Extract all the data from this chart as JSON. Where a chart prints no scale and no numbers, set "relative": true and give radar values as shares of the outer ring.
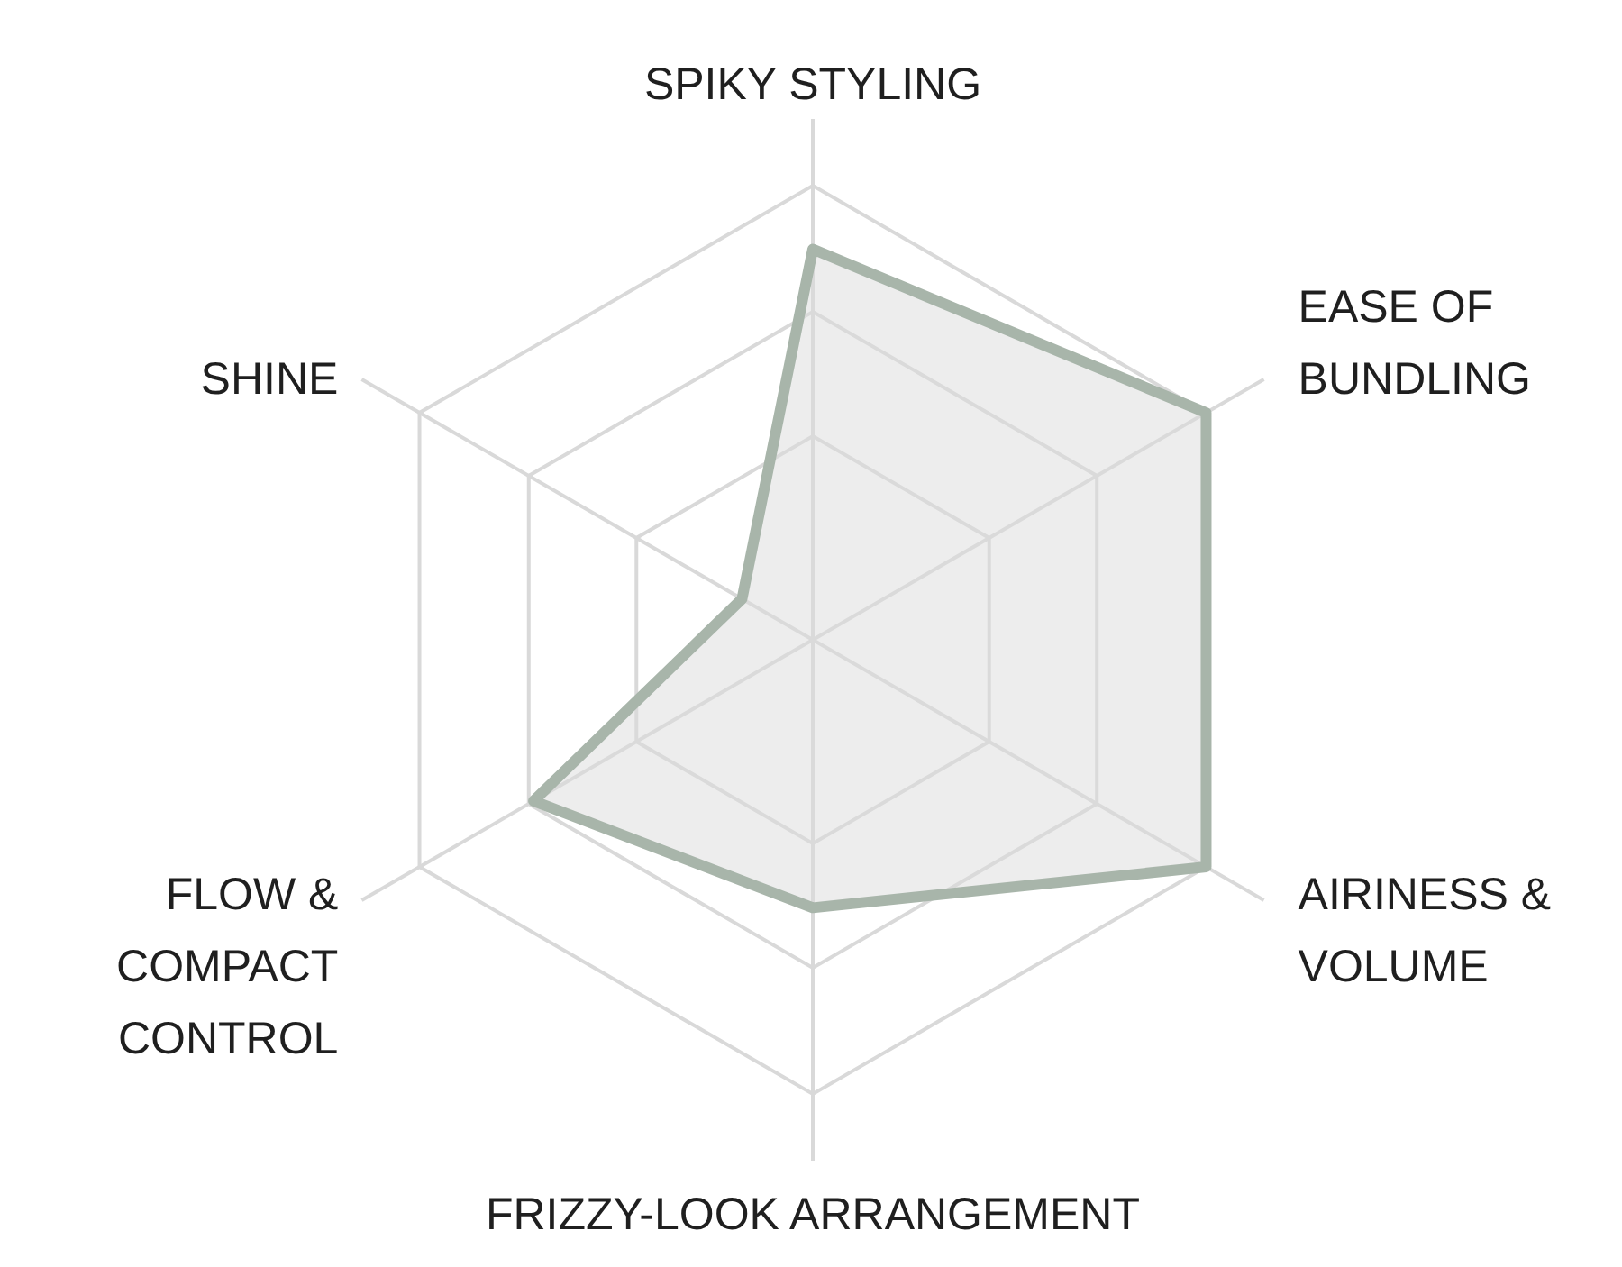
{
  "chart_data": {
    "type": "radar",
    "relative": true,
    "grid": true,
    "categories": [
      "SPIKY STYLING",
      "EASE OF BUNDLING",
      "AIRINESS & VOLUME",
      "FRIZZY-LOOK ARRANGEMENT",
      "FLOW & COMPACT CONTROL",
      "SHINE"
    ],
    "series": [
      {
        "color": "#a8b5aa",
        "values": [
          0.86,
          1.0,
          1.0,
          0.59,
          0.71,
          0.18
        ]
      }
    ]
  }
}
